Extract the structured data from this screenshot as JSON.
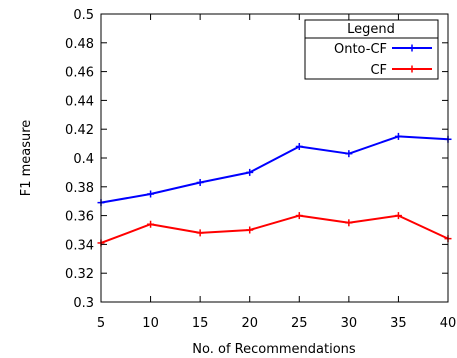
{
  "chart_data": {
    "type": "line",
    "title": "",
    "xlabel": "No. of Recommendations",
    "ylabel": "F1 measure",
    "x": [
      5,
      10,
      15,
      20,
      25,
      30,
      35,
      40
    ],
    "xlim": [
      5,
      40
    ],
    "ylim": [
      0.3,
      0.5
    ],
    "xticks": [
      "5",
      "10",
      "15",
      "20",
      "25",
      "30",
      "35",
      "40"
    ],
    "yticks": [
      "0.3",
      "0.32",
      "0.34",
      "0.36",
      "0.38",
      "0.4",
      "0.42",
      "0.44",
      "0.46",
      "0.48",
      "0.5"
    ],
    "grid": false,
    "legend": {
      "title": "Legend",
      "placement": "top-right"
    },
    "series": [
      {
        "name": "Onto-CF",
        "color": "#0000ff",
        "marker": "plus",
        "values": [
          0.369,
          0.375,
          0.383,
          0.39,
          0.408,
          0.403,
          0.415,
          0.413
        ]
      },
      {
        "name": "CF",
        "color": "#ff0000",
        "marker": "plus",
        "values": [
          0.341,
          0.354,
          0.348,
          0.35,
          0.36,
          0.355,
          0.36,
          0.344
        ]
      }
    ]
  }
}
